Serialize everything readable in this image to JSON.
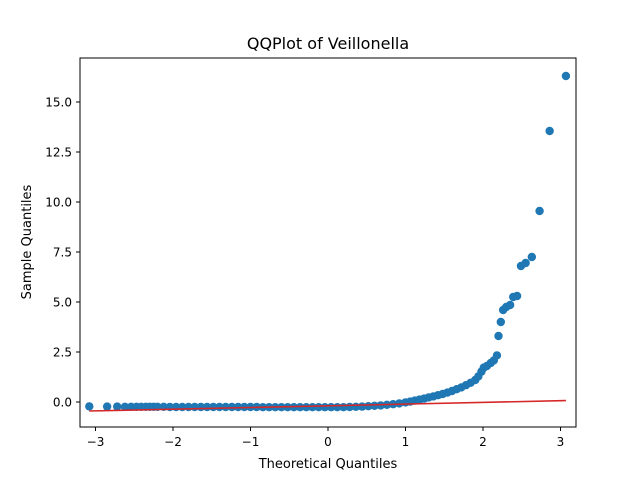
{
  "chart_data": {
    "type": "scatter",
    "title": "QQPlot of Veillonella",
    "xlabel": "Theoretical Quantiles",
    "ylabel": "Sample Quantiles",
    "xlim": [
      -3.2,
      3.2
    ],
    "ylim": [
      -1.25,
      17.2
    ],
    "xticks": [
      -3,
      -2,
      -1,
      0,
      1,
      2,
      3
    ],
    "xtick_labels": [
      "−3",
      "−2",
      "−1",
      "0",
      "1",
      "2",
      "3"
    ],
    "yticks": [
      0.0,
      2.5,
      5.0,
      7.5,
      10.0,
      12.5,
      15.0
    ],
    "ytick_labels": [
      "0.0",
      "2.5",
      "5.0",
      "7.5",
      "10.0",
      "12.5",
      "15.0"
    ],
    "grid": false,
    "colors": {
      "points": "#1f77b4",
      "reference_line": "#d62728"
    },
    "series": [
      {
        "values": [
          [
            -3.08,
            -0.22
          ],
          [
            -2.85,
            -0.23
          ],
          [
            -2.72,
            -0.23
          ],
          [
            -2.62,
            -0.24
          ],
          [
            -2.54,
            -0.24
          ],
          [
            -2.47,
            -0.24
          ],
          [
            -2.41,
            -0.24
          ],
          [
            -2.35,
            -0.24
          ],
          [
            -2.3,
            -0.24
          ],
          [
            -2.25,
            -0.24
          ],
          [
            -2.2,
            -0.24
          ],
          [
            -2.12,
            -0.24
          ],
          [
            -2.04,
            -0.25
          ],
          [
            -1.96,
            -0.25
          ],
          [
            -1.88,
            -0.25
          ],
          [
            -1.8,
            -0.25
          ],
          [
            -1.72,
            -0.25
          ],
          [
            -1.64,
            -0.25
          ],
          [
            -1.56,
            -0.25
          ],
          [
            -1.48,
            -0.25
          ],
          [
            -1.4,
            -0.25
          ],
          [
            -1.32,
            -0.25
          ],
          [
            -1.24,
            -0.25
          ],
          [
            -1.16,
            -0.25
          ],
          [
            -1.08,
            -0.25
          ],
          [
            -1.0,
            -0.25
          ],
          [
            -0.92,
            -0.25
          ],
          [
            -0.84,
            -0.26
          ],
          [
            -0.76,
            -0.26
          ],
          [
            -0.68,
            -0.26
          ],
          [
            -0.6,
            -0.26
          ],
          [
            -0.52,
            -0.26
          ],
          [
            -0.44,
            -0.26
          ],
          [
            -0.36,
            -0.26
          ],
          [
            -0.28,
            -0.26
          ],
          [
            -0.2,
            -0.26
          ],
          [
            -0.12,
            -0.26
          ],
          [
            -0.04,
            -0.26
          ],
          [
            0.04,
            -0.26
          ],
          [
            0.12,
            -0.26
          ],
          [
            0.2,
            -0.26
          ],
          [
            0.28,
            -0.25
          ],
          [
            0.36,
            -0.24
          ],
          [
            0.44,
            -0.23
          ],
          [
            0.52,
            -0.21
          ],
          [
            0.6,
            -0.19
          ],
          [
            0.68,
            -0.17
          ],
          [
            0.76,
            -0.14
          ],
          [
            0.84,
            -0.11
          ],
          [
            0.92,
            -0.07
          ],
          [
            1.0,
            -0.02
          ],
          [
            1.06,
            0.02
          ],
          [
            1.12,
            0.07
          ],
          [
            1.18,
            0.12
          ],
          [
            1.24,
            0.17
          ],
          [
            1.3,
            0.23
          ],
          [
            1.36,
            0.28
          ],
          [
            1.42,
            0.34
          ],
          [
            1.48,
            0.4
          ],
          [
            1.54,
            0.47
          ],
          [
            1.6,
            0.55
          ],
          [
            1.66,
            0.64
          ],
          [
            1.72,
            0.73
          ],
          [
            1.78,
            0.84
          ],
          [
            1.84,
            0.96
          ],
          [
            1.9,
            1.1
          ],
          [
            1.94,
            1.28
          ],
          [
            1.98,
            1.52
          ],
          [
            2.01,
            1.72
          ],
          [
            2.05,
            1.8
          ],
          [
            2.1,
            1.95
          ],
          [
            2.14,
            2.08
          ],
          [
            2.18,
            2.33
          ],
          [
            2.2,
            3.3
          ],
          [
            2.23,
            4.0
          ],
          [
            2.26,
            4.6
          ],
          [
            2.3,
            4.75
          ],
          [
            2.35,
            4.85
          ],
          [
            2.39,
            5.25
          ],
          [
            2.44,
            5.3
          ],
          [
            2.49,
            6.8
          ],
          [
            2.55,
            6.95
          ],
          [
            2.63,
            7.25
          ],
          [
            2.73,
            9.55
          ],
          [
            2.86,
            13.55
          ],
          [
            3.07,
            16.3
          ]
        ]
      }
    ],
    "reference_line": {
      "x": [
        -3.08,
        3.07
      ],
      "y": [
        -0.45,
        0.07
      ]
    }
  }
}
